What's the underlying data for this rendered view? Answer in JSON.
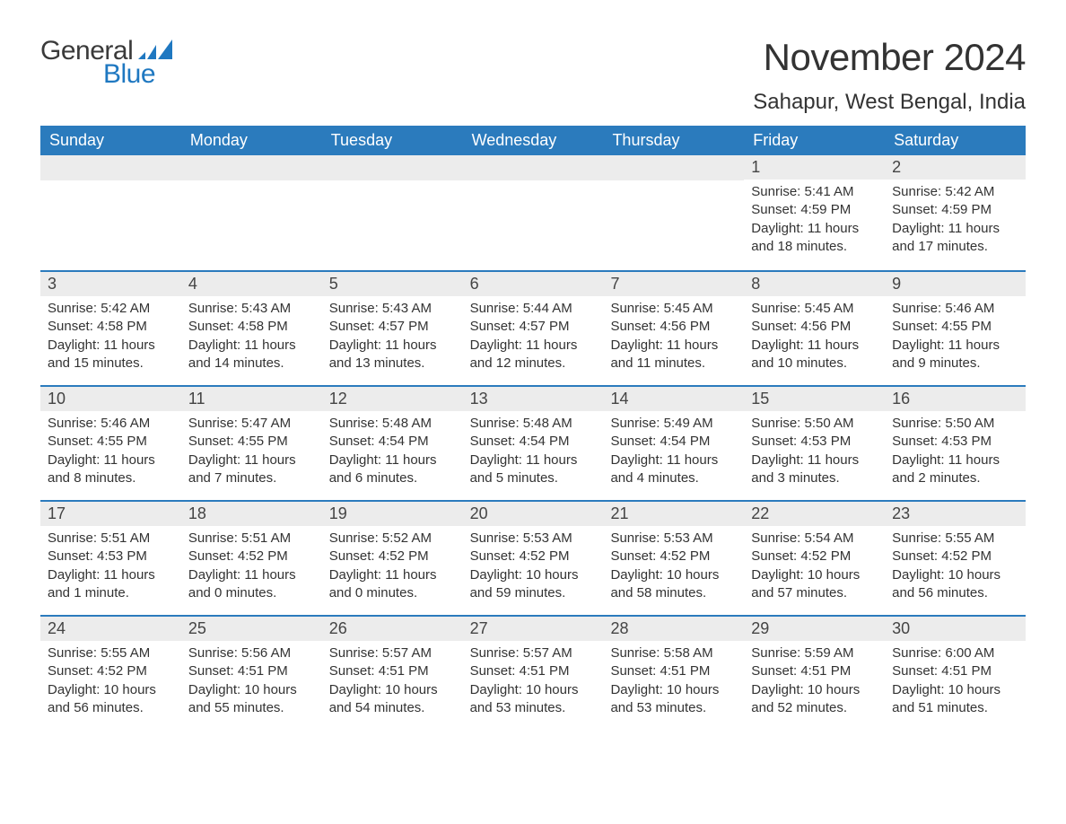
{
  "logo": {
    "text_general": "General",
    "text_blue": "Blue",
    "accent_color": "#1f78c1"
  },
  "header": {
    "month_title": "November 2024",
    "location": "Sahapur, West Bengal, India"
  },
  "style": {
    "header_bg": "#2b7bbd",
    "header_text": "#ffffff",
    "daynum_bg": "#ececec",
    "border_color": "#2b7bbd",
    "body_text": "#333333",
    "title_fontsize": 42,
    "location_fontsize": 24,
    "header_fontsize": 18,
    "day_fontsize": 15
  },
  "day_labels": [
    "Sunday",
    "Monday",
    "Tuesday",
    "Wednesday",
    "Thursday",
    "Friday",
    "Saturday"
  ],
  "days": {
    "1": {
      "sunrise": "5:41 AM",
      "sunset": "4:59 PM",
      "daylight": "11 hours and 18 minutes."
    },
    "2": {
      "sunrise": "5:42 AM",
      "sunset": "4:59 PM",
      "daylight": "11 hours and 17 minutes."
    },
    "3": {
      "sunrise": "5:42 AM",
      "sunset": "4:58 PM",
      "daylight": "11 hours and 15 minutes."
    },
    "4": {
      "sunrise": "5:43 AM",
      "sunset": "4:58 PM",
      "daylight": "11 hours and 14 minutes."
    },
    "5": {
      "sunrise": "5:43 AM",
      "sunset": "4:57 PM",
      "daylight": "11 hours and 13 minutes."
    },
    "6": {
      "sunrise": "5:44 AM",
      "sunset": "4:57 PM",
      "daylight": "11 hours and 12 minutes."
    },
    "7": {
      "sunrise": "5:45 AM",
      "sunset": "4:56 PM",
      "daylight": "11 hours and 11 minutes."
    },
    "8": {
      "sunrise": "5:45 AM",
      "sunset": "4:56 PM",
      "daylight": "11 hours and 10 minutes."
    },
    "9": {
      "sunrise": "5:46 AM",
      "sunset": "4:55 PM",
      "daylight": "11 hours and 9 minutes."
    },
    "10": {
      "sunrise": "5:46 AM",
      "sunset": "4:55 PM",
      "daylight": "11 hours and 8 minutes."
    },
    "11": {
      "sunrise": "5:47 AM",
      "sunset": "4:55 PM",
      "daylight": "11 hours and 7 minutes."
    },
    "12": {
      "sunrise": "5:48 AM",
      "sunset": "4:54 PM",
      "daylight": "11 hours and 6 minutes."
    },
    "13": {
      "sunrise": "5:48 AM",
      "sunset": "4:54 PM",
      "daylight": "11 hours and 5 minutes."
    },
    "14": {
      "sunrise": "5:49 AM",
      "sunset": "4:54 PM",
      "daylight": "11 hours and 4 minutes."
    },
    "15": {
      "sunrise": "5:50 AM",
      "sunset": "4:53 PM",
      "daylight": "11 hours and 3 minutes."
    },
    "16": {
      "sunrise": "5:50 AM",
      "sunset": "4:53 PM",
      "daylight": "11 hours and 2 minutes."
    },
    "17": {
      "sunrise": "5:51 AM",
      "sunset": "4:53 PM",
      "daylight": "11 hours and 1 minute."
    },
    "18": {
      "sunrise": "5:51 AM",
      "sunset": "4:52 PM",
      "daylight": "11 hours and 0 minutes."
    },
    "19": {
      "sunrise": "5:52 AM",
      "sunset": "4:52 PM",
      "daylight": "11 hours and 0 minutes."
    },
    "20": {
      "sunrise": "5:53 AM",
      "sunset": "4:52 PM",
      "daylight": "10 hours and 59 minutes."
    },
    "21": {
      "sunrise": "5:53 AM",
      "sunset": "4:52 PM",
      "daylight": "10 hours and 58 minutes."
    },
    "22": {
      "sunrise": "5:54 AM",
      "sunset": "4:52 PM",
      "daylight": "10 hours and 57 minutes."
    },
    "23": {
      "sunrise": "5:55 AM",
      "sunset": "4:52 PM",
      "daylight": "10 hours and 56 minutes."
    },
    "24": {
      "sunrise": "5:55 AM",
      "sunset": "4:52 PM",
      "daylight": "10 hours and 56 minutes."
    },
    "25": {
      "sunrise": "5:56 AM",
      "sunset": "4:51 PM",
      "daylight": "10 hours and 55 minutes."
    },
    "26": {
      "sunrise": "5:57 AM",
      "sunset": "4:51 PM",
      "daylight": "10 hours and 54 minutes."
    },
    "27": {
      "sunrise": "5:57 AM",
      "sunset": "4:51 PM",
      "daylight": "10 hours and 53 minutes."
    },
    "28": {
      "sunrise": "5:58 AM",
      "sunset": "4:51 PM",
      "daylight": "10 hours and 53 minutes."
    },
    "29": {
      "sunrise": "5:59 AM",
      "sunset": "4:51 PM",
      "daylight": "10 hours and 52 minutes."
    },
    "30": {
      "sunrise": "6:00 AM",
      "sunset": "4:51 PM",
      "daylight": "10 hours and 51 minutes."
    }
  },
  "grid": [
    [
      null,
      null,
      null,
      null,
      null,
      "1",
      "2"
    ],
    [
      "3",
      "4",
      "5",
      "6",
      "7",
      "8",
      "9"
    ],
    [
      "10",
      "11",
      "12",
      "13",
      "14",
      "15",
      "16"
    ],
    [
      "17",
      "18",
      "19",
      "20",
      "21",
      "22",
      "23"
    ],
    [
      "24",
      "25",
      "26",
      "27",
      "28",
      "29",
      "30"
    ]
  ],
  "labels": {
    "sunrise_prefix": "Sunrise: ",
    "sunset_prefix": "Sunset: ",
    "daylight_prefix": "Daylight: "
  }
}
